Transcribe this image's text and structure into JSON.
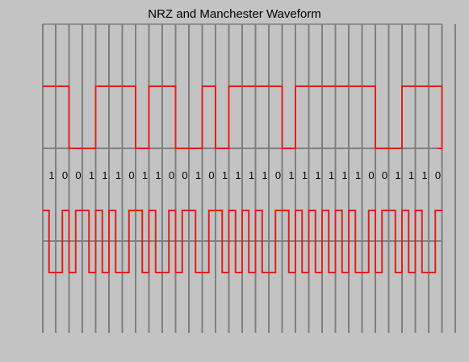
{
  "title": "NRZ and Manchester Waveform",
  "bits": [
    1,
    0,
    0,
    1,
    1,
    1,
    0,
    1,
    1,
    0,
    0,
    1,
    0,
    1,
    1,
    1,
    1,
    0,
    1,
    1,
    1,
    1,
    1,
    1,
    0,
    0,
    1,
    1,
    1,
    0
  ],
  "colors": {
    "background": "#c3c3c3",
    "grid": "#7f7f7f",
    "waveform": "#e0201b",
    "text": "#000000"
  }
}
